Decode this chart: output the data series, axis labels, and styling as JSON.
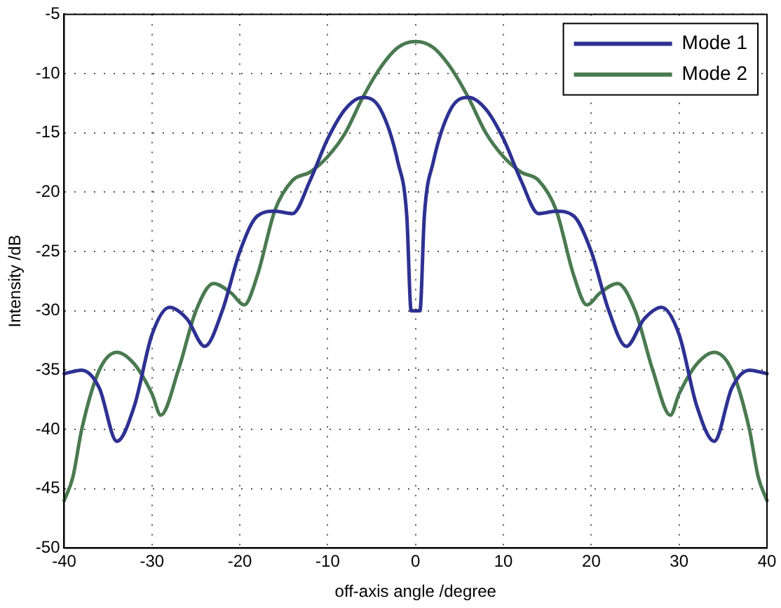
{
  "chart_data": {
    "type": "line",
    "xlabel": "off-axis angle /degree",
    "ylabel": "Intensity /dB",
    "xlim": [
      -40,
      40
    ],
    "xticks": [
      -40,
      -30,
      -20,
      -10,
      0,
      10,
      20,
      30,
      40
    ],
    "ylim": [
      -50,
      -5
    ],
    "yticks": [
      -50,
      -45,
      -40,
      -35,
      -30,
      -25,
      -20,
      -15,
      -10,
      -5
    ],
    "grid": true,
    "legend": "top right",
    "marker": "none",
    "line_style": "solid",
    "series": [
      {
        "name": "Mode 1",
        "color": "#2e3192",
        "x": [
          -40,
          -38,
          -36,
          -34,
          -32,
          -30,
          -28,
          -26,
          -24,
          -22,
          -20,
          -18,
          -16,
          -14,
          -12,
          -10,
          -8,
          -6,
          -4,
          -2,
          -1,
          -0.5,
          0.5,
          1,
          2,
          4,
          6,
          8,
          10,
          12,
          14,
          16,
          18,
          20,
          22,
          24,
          26,
          28,
          30,
          32,
          34,
          36,
          38,
          40
        ],
        "values": [
          -35.3,
          -35,
          -36.5,
          -41,
          -38,
          -32,
          -29.7,
          -30.7,
          -33,
          -30,
          -25,
          -22,
          -21.6,
          -21.8,
          -19,
          -15.5,
          -13,
          -12,
          -13,
          -17.5,
          -22,
          -30,
          -30,
          -22,
          -17.5,
          -13,
          -12,
          -13,
          -15.5,
          -19,
          -21.8,
          -21.6,
          -22,
          -25,
          -30,
          -33,
          -30.7,
          -29.7,
          -32,
          -38,
          -41,
          -36.5,
          -35,
          -35.3
        ]
      },
      {
        "name": "Mode 2",
        "color": "#4a7a50",
        "x": [
          -40,
          -39,
          -38,
          -36,
          -34,
          -32,
          -30,
          -29,
          -27,
          -25,
          -23,
          -21,
          -19.5,
          -18,
          -16,
          -14,
          -12,
          -10,
          -8,
          -6,
          -4,
          -2,
          0,
          2,
          4,
          6,
          8,
          10,
          12,
          14,
          16,
          18,
          19.5,
          21,
          23,
          25,
          27,
          29,
          30,
          32,
          34,
          36,
          38,
          39,
          40
        ],
        "values": [
          -46,
          -44,
          -40,
          -35,
          -33.5,
          -34.5,
          -37,
          -38.8,
          -35,
          -30,
          -27.7,
          -28.5,
          -29.5,
          -27,
          -21.5,
          -19,
          -18.3,
          -17,
          -15,
          -12,
          -9.5,
          -7.8,
          -7.3,
          -7.8,
          -9.5,
          -12,
          -15,
          -17,
          -18.3,
          -19,
          -21.5,
          -27,
          -29.5,
          -28.5,
          -27.7,
          -30,
          -35,
          -38.8,
          -37,
          -34.5,
          -33.5,
          -35,
          -40,
          -44,
          -46
        ]
      }
    ]
  }
}
